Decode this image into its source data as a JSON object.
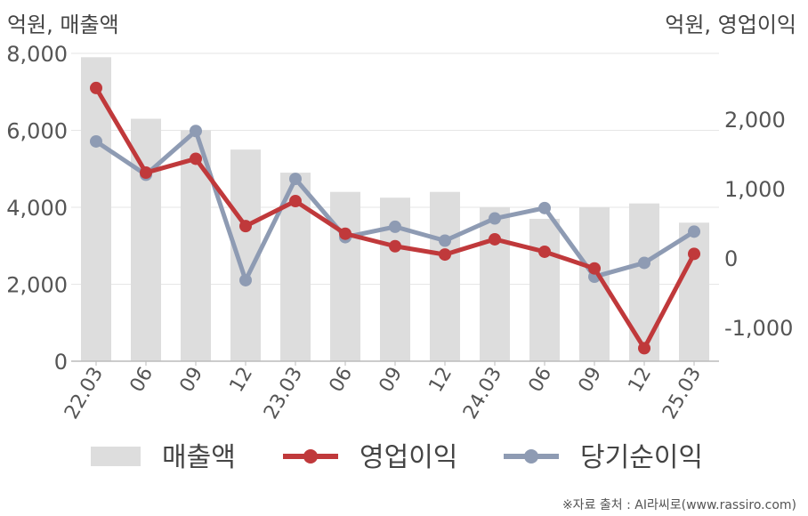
{
  "chart_data": {
    "type": "bar",
    "left_unit_label": "억원, 매출액",
    "right_unit_label": "억원, 영업이익",
    "categories": [
      "22.03",
      "06",
      "09",
      "12",
      "23.03",
      "06",
      "09",
      "12",
      "24.03",
      "06",
      "09",
      "12",
      "25.03"
    ],
    "left_axis": {
      "ylim": [
        0,
        8000
      ],
      "ticks": [
        "0",
        "2,000",
        "4,000",
        "6,000",
        "8,000"
      ],
      "tick_values": [
        0,
        2000,
        4000,
        6000,
        8000
      ]
    },
    "right_axis": {
      "ylim": [
        -1500,
        2800
      ],
      "ticks": [
        "-1,000",
        "0",
        "1,000",
        "2,000"
      ],
      "tick_values": [
        -1000,
        0,
        1000,
        2000
      ]
    },
    "series": [
      {
        "name": "매출액",
        "kind": "bar",
        "axis": "left",
        "color": "#dddddd",
        "values": [
          7900,
          6300,
          6000,
          5500,
          4900,
          4400,
          4250,
          4400,
          4000,
          3700,
          4000,
          4100,
          3600
        ]
      },
      {
        "name": "영업이익",
        "kind": "line",
        "axis": "right",
        "color": "#c0393b",
        "values": [
          2450,
          1230,
          1430,
          460,
          820,
          350,
          170,
          50,
          270,
          90,
          -150,
          -1300,
          60
        ]
      },
      {
        "name": "당기순이익",
        "kind": "line",
        "axis": "right",
        "color": "#8e9bb3",
        "values": [
          1680,
          1200,
          1830,
          -320,
          1140,
          300,
          450,
          250,
          570,
          720,
          -270,
          -70,
          380
        ]
      }
    ],
    "grid": true,
    "legend": "bottom"
  },
  "source_note": "※자료 출처 : AI라씨로(www.rassiro.com)"
}
